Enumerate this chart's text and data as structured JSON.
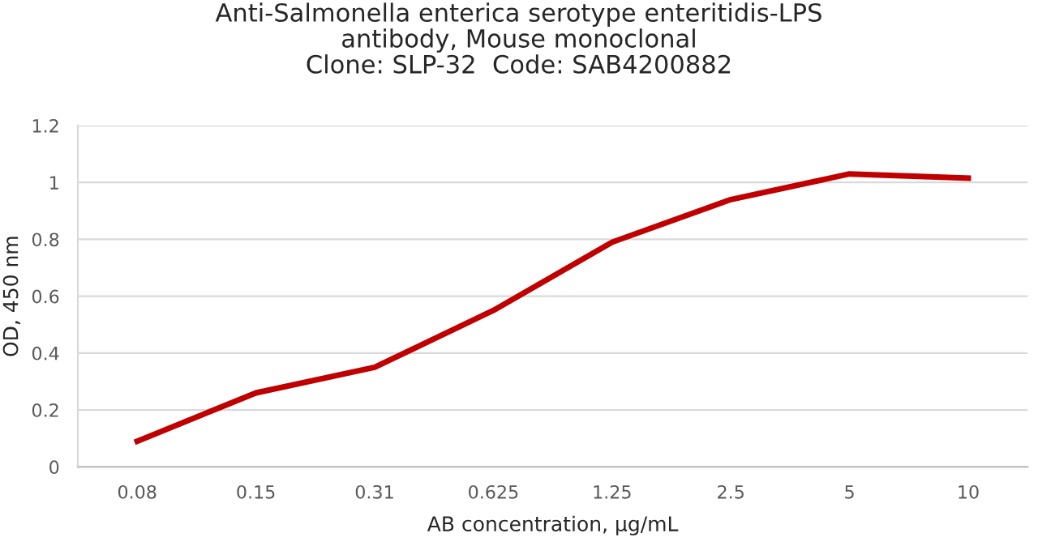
{
  "chart_data": {
    "type": "line",
    "title": "Anti-Salmonella enterica serotype enteritidis-LPS\nantibody, Mouse monoclonal\nClone: SLP-32  Code: SAB4200882",
    "xlabel": "AB concentration, µg/mL",
    "ylabel": "OD, 450 nm",
    "categories": [
      "0.08",
      "0.15",
      "0.31",
      "0.625",
      "1.25",
      "2.5",
      "5",
      "10"
    ],
    "series": [
      {
        "color": "#c00000",
        "values": [
          0.09,
          0.26,
          0.35,
          0.55,
          0.79,
          0.94,
          1.03,
          1.015
        ]
      }
    ],
    "ylim": [
      0,
      1.2
    ],
    "yticks": [
      0,
      0.2,
      0.4,
      0.6,
      0.8,
      1,
      1.2
    ],
    "grid": "y",
    "legend": false,
    "marker": "none",
    "line_style": "solid"
  }
}
